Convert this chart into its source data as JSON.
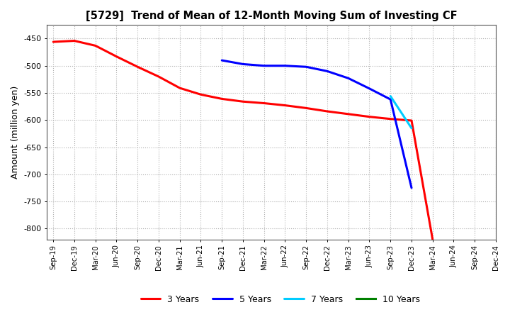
{
  "title": "[5729]  Trend of Mean of 12-Month Moving Sum of Investing CF",
  "ylabel": "Amount (million yen)",
  "ylim": [
    -820,
    -425
  ],
  "yticks": [
    -800,
    -750,
    -700,
    -650,
    -600,
    -550,
    -500,
    -450
  ],
  "background_color": "#ffffff",
  "grid_color": "#b0b0b0",
  "series": {
    "3years": {
      "color": "#ff0000",
      "label": "3 Years",
      "x": [
        0,
        1,
        2,
        3,
        4,
        5,
        6,
        7,
        8,
        9,
        10,
        11,
        12,
        13,
        14,
        15,
        16,
        17,
        18
      ],
      "y": [
        -456,
        -454,
        -463,
        -483,
        -502,
        -520,
        -541,
        -553,
        -561,
        -566,
        -569,
        -573,
        -578,
        -584,
        -589,
        -594,
        -598,
        -601,
        -820
      ]
    },
    "5years": {
      "color": "#0000ff",
      "label": "5 Years",
      "x": [
        8,
        9,
        10,
        11,
        12,
        13,
        14,
        15,
        16,
        17
      ],
      "y": [
        -490,
        -497,
        -500,
        -500,
        -502,
        -510,
        -523,
        -542,
        -562,
        -725
      ]
    },
    "7years": {
      "color": "#00ccff",
      "label": "7 Years",
      "x": [
        16,
        17
      ],
      "y": [
        -556,
        -615
      ]
    },
    "10years": {
      "color": "#008000",
      "label": "10 Years",
      "x": [],
      "y": []
    }
  },
  "xtick_labels": [
    "Sep-19",
    "Dec-19",
    "Mar-20",
    "Jun-20",
    "Sep-20",
    "Dec-20",
    "Mar-21",
    "Jun-21",
    "Sep-21",
    "Dec-21",
    "Mar-22",
    "Jun-22",
    "Sep-22",
    "Dec-22",
    "Mar-23",
    "Jun-23",
    "Sep-23",
    "Dec-23",
    "Mar-24",
    "Jun-24",
    "Sep-24",
    "Dec-24"
  ],
  "linewidth": 2.2
}
